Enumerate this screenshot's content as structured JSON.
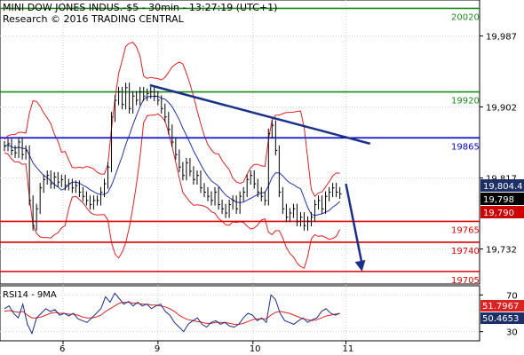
{
  "header": {
    "title": "MINI DOW JONES INDUS.-$5 - 30min - 13:27:19 (UTC+1)",
    "research": "Research © 2016 TRADING CENTRAL"
  },
  "chart_data": {
    "type": "line",
    "price_axis": {
      "ticks": [
        "19,987",
        "19,902",
        "19,817",
        "19,732"
      ],
      "min": 19690,
      "max": 20030
    },
    "x_ticks": [
      "6",
      "9",
      "10",
      "11"
    ],
    "levels": [
      {
        "label": "20020",
        "value": 20020,
        "color": "#1a8a1a"
      },
      {
        "label": "19920",
        "value": 19920,
        "color": "#1a8a1a"
      },
      {
        "label": "19865",
        "value": 19865,
        "color": "#0000cc"
      },
      {
        "label": "19765",
        "value": 19765,
        "color": "#dd0000"
      },
      {
        "label": "19740",
        "value": 19740,
        "color": "#dd0000"
      },
      {
        "label": "19705",
        "value": 19705,
        "color": "#dd0000"
      }
    ],
    "price_tags": [
      {
        "label": "19,804.4",
        "value": 19804.4,
        "bg": "#1c2f66",
        "fg": "#ffffff"
      },
      {
        "label": "19,798",
        "value": 19798,
        "bg": "#000000",
        "fg": "#ffffff"
      },
      {
        "label": "19,790",
        "value": 19790,
        "bg": "#cc0000",
        "fg": "#ffffff"
      }
    ],
    "trendline": {
      "from": [
        0.36,
        19928
      ],
      "to": [
        0.905,
        19858
      ]
    },
    "projection_arrow": {
      "from": [
        0.845,
        19810
      ],
      "to": [
        0.885,
        19705
      ]
    },
    "price_series": [
      19855,
      19858,
      19850,
      19847,
      19860,
      19845,
      19850,
      19790,
      19760,
      19780,
      19805,
      19815,
      19820,
      19810,
      19818,
      19812,
      19815,
      19808,
      19810,
      19805,
      19808,
      19800,
      19795,
      19790,
      19785,
      19790,
      19790,
      19800,
      19810,
      19830,
      19890,
      19910,
      19920,
      19905,
      19925,
      19900,
      19915,
      19910,
      19920,
      19915,
      19918,
      19920,
      19915,
      19910,
      19900,
      19890,
      19875,
      19860,
      19845,
      19830,
      19820,
      19835,
      19825,
      19815,
      19820,
      19805,
      19800,
      19795,
      19790,
      19800,
      19785,
      19780,
      19775,
      19785,
      19790,
      19780,
      19795,
      19800,
      19815,
      19820,
      19810,
      19800,
      19795,
      19790,
      19870,
      19880,
      19850,
      19800,
      19780,
      19770,
      19775,
      19780,
      19765,
      19770,
      19760,
      19765,
      19770,
      19785,
      19790,
      19780,
      19795,
      19800,
      19805,
      19800,
      19798
    ],
    "rsi": {
      "title": "RSI14 - 9MA",
      "ticks": [
        "70",
        "30"
      ],
      "min": 20,
      "max": 80,
      "value_labels": [
        "51.7967",
        "50.4653"
      ],
      "rsi_series": [
        55,
        58,
        50,
        45,
        60,
        38,
        28,
        45,
        50,
        55,
        52,
        54,
        48,
        50,
        47,
        50,
        44,
        42,
        40,
        45,
        50,
        55,
        68,
        62,
        72,
        66,
        60,
        63,
        58,
        62,
        58,
        60,
        55,
        58,
        60,
        52,
        48,
        40,
        35,
        30,
        38,
        42,
        45,
        38,
        35,
        40,
        42,
        38,
        40,
        36,
        35,
        38,
        45,
        50,
        48,
        42,
        45,
        40,
        70,
        65,
        50,
        42,
        40,
        38,
        42,
        45,
        40,
        43,
        45,
        52,
        55,
        50,
        48,
        50
      ],
      "ma_series": [
        52,
        53,
        52,
        51,
        52,
        48,
        45,
        45,
        46,
        48,
        50,
        51,
        50,
        50,
        49,
        49,
        48,
        46,
        45,
        45,
        46,
        48,
        52,
        55,
        58,
        61,
        62,
        62,
        61,
        61,
        60,
        60,
        59,
        59,
        58,
        57,
        55,
        52,
        48,
        45,
        43,
        42,
        41,
        40,
        39,
        39,
        40,
        40,
        40,
        39,
        38,
        38,
        39,
        41,
        43,
        44,
        44,
        44,
        48,
        51,
        52,
        51,
        50,
        48,
        46,
        44,
        43,
        42,
        43,
        45,
        47,
        48,
        49,
        50
      ]
    }
  }
}
